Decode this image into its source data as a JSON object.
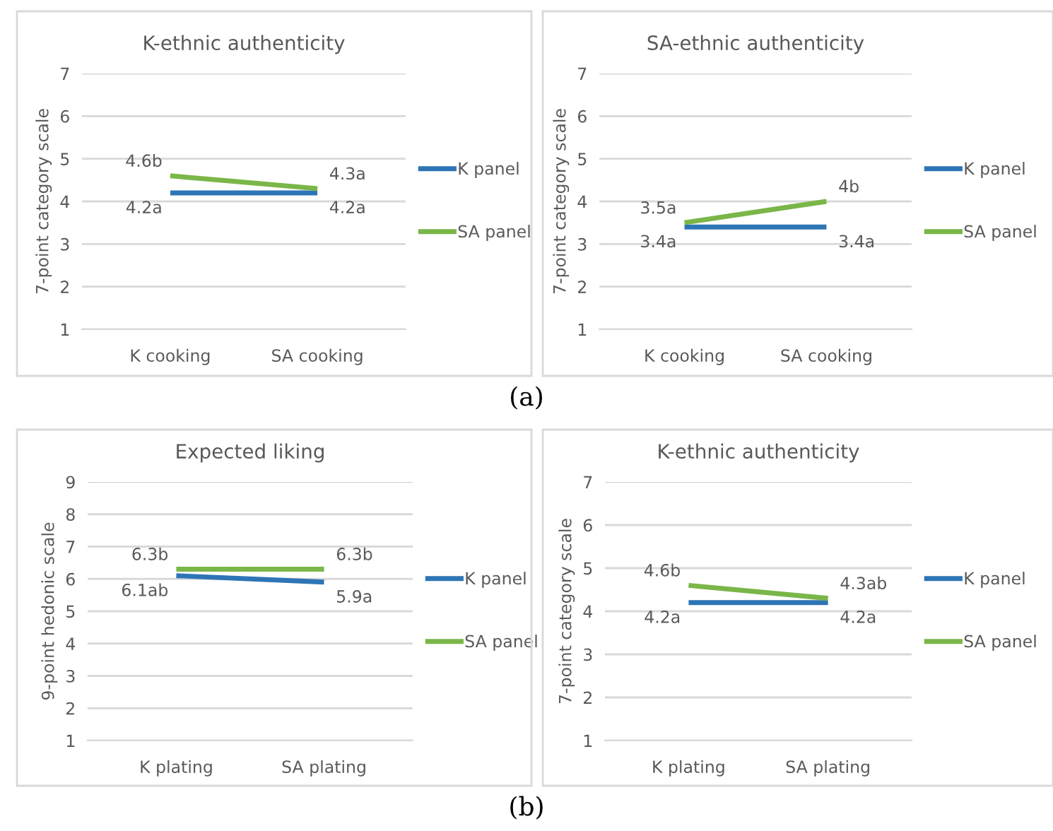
{
  "chart_data": [
    {
      "type": "line",
      "title": "K-ethnic authenticity",
      "ylabel": "7-point category scale",
      "categories": [
        "K cooking",
        "SA cooking"
      ],
      "ylim": [
        1,
        7
      ],
      "yticks": [
        1,
        2,
        3,
        4,
        5,
        6,
        7
      ],
      "grid": "y",
      "legend": "right",
      "marker": "none",
      "line_style": "solid",
      "annotations": [
        "(a)"
      ],
      "series": [
        {
          "name": "K panel",
          "color": "#2e75b6",
          "values": [
            4.2,
            4.2
          ],
          "value_labels": [
            "4.2a",
            "4.2a"
          ]
        },
        {
          "name": "SA panel",
          "color": "#7ab648",
          "values": [
            4.6,
            4.3
          ],
          "value_labels": [
            "4.6b",
            "4.3a"
          ]
        }
      ]
    },
    {
      "type": "line",
      "title": "SA-ethnic authenticity",
      "ylabel": "7-point category scale",
      "categories": [
        "K cooking",
        "SA cooking"
      ],
      "ylim": [
        1,
        7
      ],
      "yticks": [
        1,
        2,
        3,
        4,
        5,
        6,
        7
      ],
      "grid": "y",
      "legend": "right",
      "marker": "none",
      "line_style": "solid",
      "series": [
        {
          "name": "K panel",
          "color": "#2e75b6",
          "values": [
            3.4,
            3.4
          ],
          "value_labels": [
            "3.4a",
            "3.4a"
          ]
        },
        {
          "name": "SA panel",
          "color": "#7ab648",
          "values": [
            3.5,
            4.0
          ],
          "value_labels": [
            "3.5a",
            "4b"
          ]
        }
      ]
    },
    {
      "type": "line",
      "title": "Expected liking",
      "ylabel": "9-point hedonic scale",
      "categories": [
        "K plating",
        "SA plating"
      ],
      "ylim": [
        1,
        9
      ],
      "yticks": [
        1,
        2,
        3,
        4,
        5,
        6,
        7,
        8,
        9
      ],
      "grid": "y",
      "legend": "right",
      "marker": "none",
      "line_style": "solid",
      "annotations": [
        "(b)"
      ],
      "series": [
        {
          "name": "K panel",
          "color": "#2e75b6",
          "values": [
            6.1,
            5.9
          ],
          "value_labels": [
            "6.1ab",
            "5.9a"
          ]
        },
        {
          "name": "SA panel",
          "color": "#7ab648",
          "values": [
            6.3,
            6.3
          ],
          "value_labels": [
            "6.3b",
            "6.3b"
          ]
        }
      ]
    },
    {
      "type": "line",
      "title": "K-ethnic authenticity",
      "ylabel": "7-point category scale",
      "categories": [
        "K plating",
        "SA plating"
      ],
      "ylim": [
        1,
        7
      ],
      "yticks": [
        1,
        2,
        3,
        4,
        5,
        6,
        7
      ],
      "grid": "y",
      "legend": "right",
      "marker": "none",
      "line_style": "solid",
      "series": [
        {
          "name": "K panel",
          "color": "#2e75b6",
          "values": [
            4.2,
            4.2
          ],
          "value_labels": [
            "4.2a",
            "4.2a"
          ]
        },
        {
          "name": "SA panel",
          "color": "#7ab648",
          "values": [
            4.6,
            4.3
          ],
          "value_labels": [
            "4.6b",
            "4.3ab"
          ]
        }
      ]
    }
  ]
}
